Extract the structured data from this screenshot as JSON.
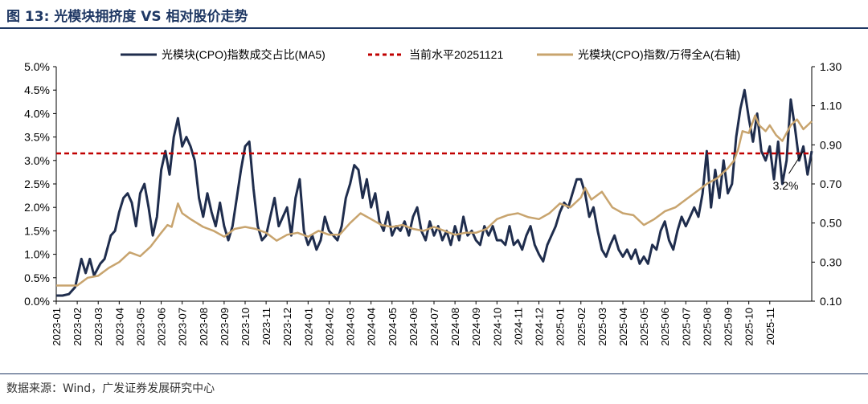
{
  "figure": {
    "title": "图 13: 光模块拥挤度 VS 相对股价走势",
    "source": "数据来源：Wind，广发证券发展研究中心"
  },
  "chart_data": {
    "type": "line",
    "categories": [
      "2023-01",
      "2023-02",
      "2023-03",
      "2023-04",
      "2023-05",
      "2023-06",
      "2023-07",
      "2023-08",
      "2023-09",
      "2023-10",
      "2023-11",
      "2023-12",
      "2024-01",
      "2024-02",
      "2024-03",
      "2024-04",
      "2024-05",
      "2024-06",
      "2024-07",
      "2024-08",
      "2024-09",
      "2024-10",
      "2024-11",
      "2024-12",
      "2025-01",
      "2025-02",
      "2025-03",
      "2025-04",
      "2025-05",
      "2025-06",
      "2025-07",
      "2025-08",
      "2025-09",
      "2025-10",
      "2025-11"
    ],
    "left_axis": {
      "ticks": [
        "0.0%",
        "0.5%",
        "1.0%",
        "1.5%",
        "2.0%",
        "2.5%",
        "3.0%",
        "3.5%",
        "4.0%",
        "4.5%",
        "5.0%"
      ],
      "ylim": [
        0,
        5
      ]
    },
    "right_axis": {
      "ticks": [
        "0.10",
        "0.30",
        "0.50",
        "0.70",
        "0.90",
        "1.10",
        "1.30"
      ],
      "ylim": [
        0.1,
        1.3
      ]
    },
    "series": [
      {
        "name": "光模块(CPO)指数成交占比(MA5)",
        "axis": "left",
        "color": "#1f2d4d",
        "style": "solid",
        "points": [
          [
            0,
            0.12
          ],
          [
            0.3,
            0.12
          ],
          [
            0.6,
            0.15
          ],
          [
            0.9,
            0.3
          ],
          [
            1.2,
            0.9
          ],
          [
            1.4,
            0.6
          ],
          [
            1.6,
            0.9
          ],
          [
            1.8,
            0.55
          ],
          [
            2.1,
            0.8
          ],
          [
            2.3,
            0.9
          ],
          [
            2.6,
            1.4
          ],
          [
            2.8,
            1.5
          ],
          [
            3.0,
            1.9
          ],
          [
            3.2,
            2.2
          ],
          [
            3.4,
            2.3
          ],
          [
            3.6,
            2.1
          ],
          [
            3.8,
            1.6
          ],
          [
            4.0,
            2.3
          ],
          [
            4.2,
            2.5
          ],
          [
            4.4,
            2.0
          ],
          [
            4.6,
            1.4
          ],
          [
            4.8,
            1.8
          ],
          [
            5.0,
            2.8
          ],
          [
            5.2,
            3.2
          ],
          [
            5.4,
            2.7
          ],
          [
            5.6,
            3.5
          ],
          [
            5.8,
            3.9
          ],
          [
            6.0,
            3.3
          ],
          [
            6.2,
            3.5
          ],
          [
            6.4,
            3.3
          ],
          [
            6.6,
            3.0
          ],
          [
            6.8,
            2.2
          ],
          [
            7.0,
            1.8
          ],
          [
            7.2,
            2.3
          ],
          [
            7.4,
            1.9
          ],
          [
            7.6,
            1.6
          ],
          [
            7.8,
            2.1
          ],
          [
            8.0,
            1.6
          ],
          [
            8.2,
            1.3
          ],
          [
            8.4,
            1.6
          ],
          [
            8.6,
            2.2
          ],
          [
            8.8,
            2.8
          ],
          [
            9.0,
            3.3
          ],
          [
            9.2,
            3.4
          ],
          [
            9.4,
            2.4
          ],
          [
            9.6,
            1.6
          ],
          [
            9.8,
            1.3
          ],
          [
            10.0,
            1.4
          ],
          [
            10.2,
            1.8
          ],
          [
            10.4,
            2.2
          ],
          [
            10.6,
            1.6
          ],
          [
            10.8,
            1.8
          ],
          [
            11.0,
            2.0
          ],
          [
            11.2,
            1.4
          ],
          [
            11.4,
            2.2
          ],
          [
            11.6,
            2.6
          ],
          [
            11.8,
            1.5
          ],
          [
            12.0,
            1.2
          ],
          [
            12.2,
            1.4
          ],
          [
            12.4,
            1.1
          ],
          [
            12.6,
            1.3
          ],
          [
            12.8,
            1.8
          ],
          [
            13.0,
            1.5
          ],
          [
            13.2,
            1.4
          ],
          [
            13.4,
            1.3
          ],
          [
            13.6,
            1.6
          ],
          [
            13.8,
            2.2
          ],
          [
            14.0,
            2.5
          ],
          [
            14.2,
            2.9
          ],
          [
            14.4,
            2.8
          ],
          [
            14.6,
            2.2
          ],
          [
            14.8,
            2.6
          ],
          [
            15.0,
            2.0
          ],
          [
            15.2,
            2.3
          ],
          [
            15.4,
            1.7
          ],
          [
            15.6,
            1.5
          ],
          [
            15.8,
            1.9
          ],
          [
            16.0,
            1.4
          ],
          [
            16.2,
            1.6
          ],
          [
            16.4,
            1.5
          ],
          [
            16.6,
            1.7
          ],
          [
            16.8,
            1.4
          ],
          [
            17.0,
            1.8
          ],
          [
            17.2,
            2.0
          ],
          [
            17.4,
            1.5
          ],
          [
            17.6,
            1.3
          ],
          [
            17.8,
            1.7
          ],
          [
            18.0,
            1.4
          ],
          [
            18.2,
            1.6
          ],
          [
            18.4,
            1.3
          ],
          [
            18.6,
            1.5
          ],
          [
            18.8,
            1.2
          ],
          [
            19.0,
            1.6
          ],
          [
            19.2,
            1.3
          ],
          [
            19.4,
            1.8
          ],
          [
            19.6,
            1.4
          ],
          [
            19.8,
            1.5
          ],
          [
            20.0,
            1.3
          ],
          [
            20.2,
            1.2
          ],
          [
            20.4,
            1.6
          ],
          [
            20.6,
            1.4
          ],
          [
            20.8,
            1.6
          ],
          [
            21.0,
            1.3
          ],
          [
            21.2,
            1.3
          ],
          [
            21.4,
            1.2
          ],
          [
            21.6,
            1.6
          ],
          [
            21.8,
            1.2
          ],
          [
            22.0,
            1.3
          ],
          [
            22.2,
            1.1
          ],
          [
            22.4,
            1.4
          ],
          [
            22.6,
            1.6
          ],
          [
            22.8,
            1.2
          ],
          [
            23.0,
            1.0
          ],
          [
            23.2,
            0.85
          ],
          [
            23.4,
            1.2
          ],
          [
            23.6,
            1.4
          ],
          [
            23.8,
            1.6
          ],
          [
            24.0,
            1.9
          ],
          [
            24.2,
            2.1
          ],
          [
            24.4,
            2.0
          ],
          [
            24.6,
            2.3
          ],
          [
            24.8,
            2.6
          ],
          [
            25.0,
            2.6
          ],
          [
            25.2,
            2.3
          ],
          [
            25.4,
            1.8
          ],
          [
            25.6,
            2.0
          ],
          [
            25.8,
            1.5
          ],
          [
            26.0,
            1.1
          ],
          [
            26.2,
            0.95
          ],
          [
            26.4,
            1.2
          ],
          [
            26.6,
            1.4
          ],
          [
            26.8,
            1.1
          ],
          [
            27.0,
            0.95
          ],
          [
            27.2,
            1.1
          ],
          [
            27.4,
            0.9
          ],
          [
            27.6,
            1.1
          ],
          [
            27.8,
            0.8
          ],
          [
            28.0,
            0.95
          ],
          [
            28.2,
            0.8
          ],
          [
            28.4,
            1.2
          ],
          [
            28.6,
            1.1
          ],
          [
            28.8,
            1.5
          ],
          [
            29.0,
            1.7
          ],
          [
            29.2,
            1.3
          ],
          [
            29.4,
            1.1
          ],
          [
            29.6,
            1.5
          ],
          [
            29.8,
            1.8
          ],
          [
            30.0,
            1.6
          ],
          [
            30.2,
            1.8
          ],
          [
            30.4,
            2.0
          ],
          [
            30.6,
            1.8
          ],
          [
            30.8,
            2.3
          ],
          [
            31.0,
            3.2
          ],
          [
            31.2,
            2.0
          ],
          [
            31.4,
            2.8
          ],
          [
            31.6,
            2.2
          ],
          [
            31.8,
            3.0
          ],
          [
            32.0,
            2.3
          ],
          [
            32.2,
            2.5
          ],
          [
            32.4,
            3.5
          ],
          [
            32.6,
            4.1
          ],
          [
            32.8,
            4.5
          ],
          [
            33.0,
            3.9
          ],
          [
            33.2,
            3.4
          ],
          [
            33.4,
            4.0
          ],
          [
            33.6,
            3.2
          ],
          [
            33.8,
            3.0
          ],
          [
            34.0,
            3.3
          ],
          [
            34.2,
            2.6
          ],
          [
            34.4,
            3.4
          ],
          [
            34.6,
            2.5
          ],
          [
            34.8,
            3.0
          ],
          [
            35.0,
            4.3
          ],
          [
            35.2,
            3.7
          ],
          [
            35.4,
            3.0
          ],
          [
            35.6,
            3.3
          ],
          [
            35.8,
            2.7
          ],
          [
            36.0,
            3.2
          ]
        ]
      },
      {
        "name": "当前水平20251121",
        "axis": "left",
        "color": "#c00000",
        "style": "dashed",
        "value": 3.15
      },
      {
        "name": "光模块(CPO)指数/万得全A(右轴)",
        "axis": "right",
        "color": "#c8a46e",
        "style": "solid",
        "points": [
          [
            0,
            0.18
          ],
          [
            0.5,
            0.18
          ],
          [
            1.0,
            0.18
          ],
          [
            1.5,
            0.22
          ],
          [
            2.0,
            0.23
          ],
          [
            2.5,
            0.27
          ],
          [
            3.0,
            0.3
          ],
          [
            3.5,
            0.35
          ],
          [
            4.0,
            0.33
          ],
          [
            4.5,
            0.38
          ],
          [
            5.0,
            0.45
          ],
          [
            5.3,
            0.49
          ],
          [
            5.5,
            0.48
          ],
          [
            5.8,
            0.6
          ],
          [
            6.0,
            0.55
          ],
          [
            6.4,
            0.52
          ],
          [
            7.0,
            0.48
          ],
          [
            7.5,
            0.46
          ],
          [
            8.0,
            0.43
          ],
          [
            8.5,
            0.47
          ],
          [
            9.0,
            0.48
          ],
          [
            9.5,
            0.47
          ],
          [
            10.0,
            0.45
          ],
          [
            10.5,
            0.41
          ],
          [
            11.0,
            0.44
          ],
          [
            11.5,
            0.45
          ],
          [
            12.0,
            0.43
          ],
          [
            12.5,
            0.46
          ],
          [
            13.0,
            0.44
          ],
          [
            13.5,
            0.44
          ],
          [
            14.0,
            0.5
          ],
          [
            14.5,
            0.55
          ],
          [
            15.0,
            0.52
          ],
          [
            15.5,
            0.49
          ],
          [
            16.0,
            0.48
          ],
          [
            16.5,
            0.49
          ],
          [
            17.0,
            0.47
          ],
          [
            17.5,
            0.46
          ],
          [
            18.0,
            0.48
          ],
          [
            18.5,
            0.46
          ],
          [
            19.0,
            0.44
          ],
          [
            19.5,
            0.45
          ],
          [
            20.0,
            0.45
          ],
          [
            20.5,
            0.47
          ],
          [
            21.0,
            0.52
          ],
          [
            21.5,
            0.54
          ],
          [
            22.0,
            0.55
          ],
          [
            22.5,
            0.53
          ],
          [
            23.0,
            0.52
          ],
          [
            23.5,
            0.55
          ],
          [
            24.0,
            0.6
          ],
          [
            24.5,
            0.58
          ],
          [
            25.0,
            0.63
          ],
          [
            25.2,
            0.68
          ],
          [
            25.5,
            0.62
          ],
          [
            26.0,
            0.66
          ],
          [
            26.5,
            0.58
          ],
          [
            27.0,
            0.55
          ],
          [
            27.5,
            0.54
          ],
          [
            28.0,
            0.49
          ],
          [
            28.5,
            0.52
          ],
          [
            29.0,
            0.56
          ],
          [
            29.5,
            0.58
          ],
          [
            30.0,
            0.62
          ],
          [
            30.5,
            0.66
          ],
          [
            31.0,
            0.7
          ],
          [
            31.5,
            0.73
          ],
          [
            32.0,
            0.78
          ],
          [
            32.3,
            0.82
          ],
          [
            32.5,
            0.88
          ],
          [
            32.7,
            0.97
          ],
          [
            33.0,
            0.96
          ],
          [
            33.3,
            1.05
          ],
          [
            33.5,
            1.0
          ],
          [
            33.8,
            0.97
          ],
          [
            34.0,
            1.0
          ],
          [
            34.3,
            0.95
          ],
          [
            34.6,
            0.92
          ],
          [
            35.0,
            1.0
          ],
          [
            35.3,
            1.03
          ],
          [
            35.6,
            0.98
          ],
          [
            36.0,
            1.02
          ]
        ]
      }
    ],
    "annotation": {
      "text": "3.2%",
      "x": 35.6,
      "y": 3.2
    }
  }
}
